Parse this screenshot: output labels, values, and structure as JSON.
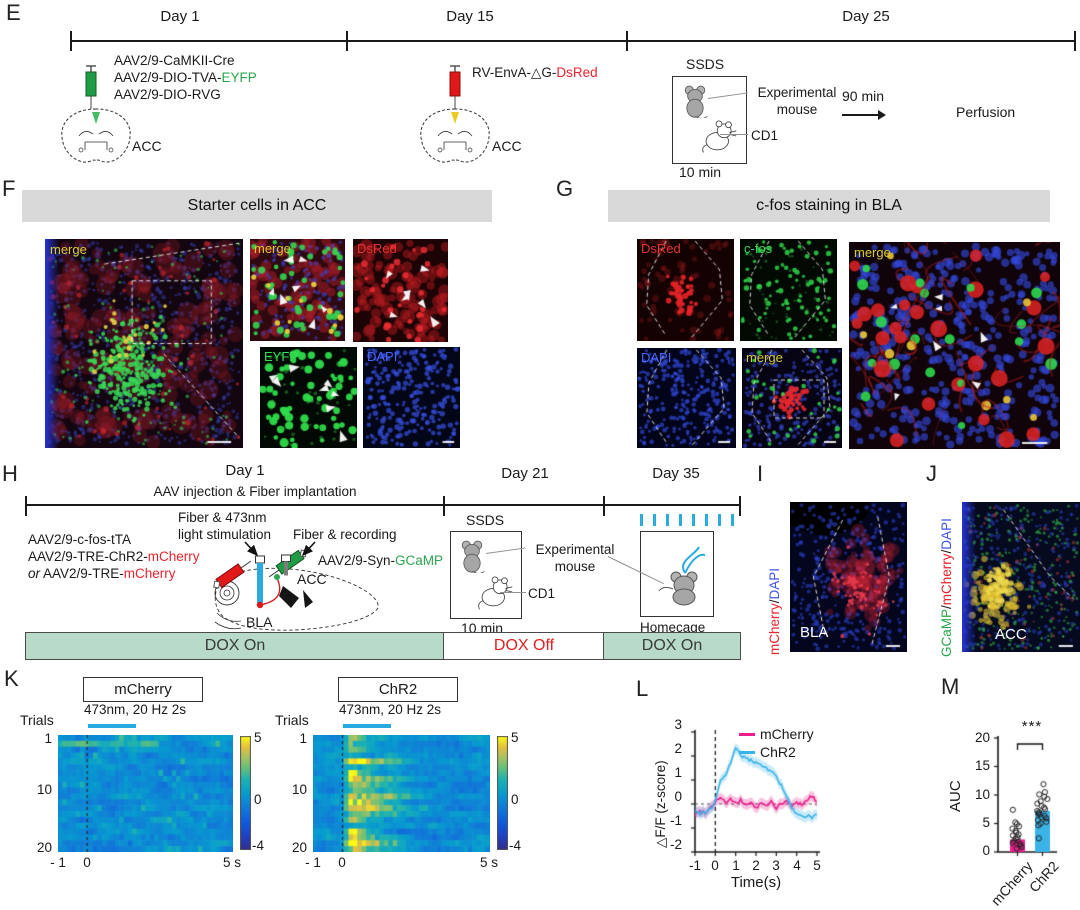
{
  "colors": {
    "magenta": "#ec1e8c",
    "cyan": "#3ab4e8",
    "blue_light": "#29abe2",
    "red_label": "#e8242c",
    "green_label": "#2ca64e",
    "header_bg": "#d9d9d9",
    "dox_green": "#b7dbc8"
  },
  "panel_e": {
    "letter": "E",
    "day1": {
      "label": "Day 1",
      "virus1": "AAV2/9-CaMKII-Cre",
      "virus2_pre": "AAV2/9-DIO-TVA-",
      "virus2_tag": "EYFP",
      "virus3": "AAV2/9-DIO-RVG",
      "region": "ACC"
    },
    "day15": {
      "label": "Day 15",
      "virus_pre": "RV-EnvA-△G-",
      "virus_tag": "DsRed",
      "region": "ACC"
    },
    "day25": {
      "label": "Day 25",
      "assay": "SSDS",
      "mouse1_line1": "Experimental",
      "mouse1_line2": "mouse",
      "mouse2": "CD1",
      "duration": "10 min",
      "wait": "90 min",
      "endpoint": "Perfusion"
    }
  },
  "panel_f": {
    "letter": "F",
    "title": "Starter cells in ACC",
    "labels": {
      "large": "merge",
      "merge": "merge",
      "dsred": "DsRed",
      "eyfp": "EYFP",
      "dapi": "DAPI"
    }
  },
  "panel_g": {
    "letter": "G",
    "title": "c-fos staining in BLA",
    "labels": {
      "dsred": "DsRed",
      "cfos": "c-fos",
      "dapi": "DAPI",
      "merge": "merge",
      "large": "merge"
    }
  },
  "panel_h": {
    "letter": "H",
    "day1_label": "Day 1",
    "day1_sub": "AAV injection & Fiber implantation",
    "day21_label": "Day 21",
    "day35_label": "Day 35",
    "virus1": "AAV2/9-c-fos-tTA",
    "virus2_pre": "AAV2/9-TRE-ChR2-",
    "virus2_tag": "mCherry",
    "virus3_or": "or",
    "virus3_pre": " AAV2/9-TRE-",
    "virus3_tag": "mCherry",
    "fiber1_line1": "Fiber & 473nm",
    "fiber1_line2": "light stimulation",
    "fiber2": "Fiber & recording",
    "gcamp_pre": "AAV2/9-Syn-",
    "gcamp_tag": "GCaMP",
    "acc": "ACC",
    "bla": "BLA",
    "ssds": {
      "label": "SSDS",
      "mouse1_line1": "Experimental",
      "mouse1_line2": "mouse",
      "mouse2": "CD1",
      "duration": "10 min"
    },
    "homecage": "Homecage",
    "dox_on1": "DOX On",
    "dox_off": "DOX Off",
    "dox_on2": "DOX On"
  },
  "panel_i": {
    "letter": "I",
    "tag1": "mCherry",
    "sep1": "/",
    "tag2": "DAPI",
    "region": "BLA"
  },
  "panel_j": {
    "letter": "J",
    "tag1": "GCaMP",
    "sep1": "/",
    "tag2": "mCherry",
    "sep2": "/",
    "tag3": "DAPI",
    "region": "ACC"
  },
  "panel_k": {
    "letter": "K"
  },
  "panel_l": {
    "letter": "L"
  },
  "panel_m": {
    "letter": "M"
  },
  "chart_data": [
    {
      "type": "heatmap",
      "panel": "K-left",
      "title": "mCherry",
      "stim_label": "473nm, 20 Hz 2s",
      "ylabel": "Trials",
      "trials": 20,
      "time_range_s": [
        -1,
        5
      ],
      "ytick_labels": [
        "1",
        "10",
        "20"
      ],
      "xtick_labels": [
        "- 1",
        "0",
        "5 s"
      ],
      "color_limits": [
        -4,
        5
      ],
      "colorbar_ticks": [
        "5",
        "0",
        "-4"
      ],
      "colormap": "parula",
      "stim_window_s": [
        0,
        2
      ],
      "response_amplitude_z": 0.3,
      "baseline_noise_z": 0.85
    },
    {
      "type": "heatmap",
      "panel": "K-right",
      "title": "ChR2",
      "stim_label": "473nm, 20 Hz 2s",
      "ylabel": "Trials",
      "trials": 20,
      "time_range_s": [
        -1,
        5
      ],
      "ytick_labels": [
        "1",
        "10",
        "20"
      ],
      "xtick_labels": [
        "- 1",
        "0",
        "5 s"
      ],
      "color_limits": [
        -4,
        5
      ],
      "colorbar_ticks": [
        "5",
        "0",
        "-4"
      ],
      "colormap": "parula",
      "stim_window_s": [
        0,
        2
      ],
      "response_amplitude_z": 3.6,
      "baseline_noise_z": 0.85
    },
    {
      "type": "line",
      "panel": "L",
      "xlabel": "Time(s)",
      "ylabel": "△F/F (z-score)",
      "xlim": [
        -1,
        5
      ],
      "ylim": [
        -2,
        3
      ],
      "xticks": [
        -1,
        0,
        1,
        2,
        3,
        4,
        5
      ],
      "yticks": [
        3,
        2,
        1,
        0,
        -1,
        -2
      ],
      "legend": [
        "mCherry",
        "ChR2"
      ],
      "vline_x": 0,
      "hline_y": 0,
      "band_halfwidth": 0.22,
      "series": [
        {
          "name": "mCherry",
          "color": "#ec1e8c",
          "x": [
            -1,
            -0.75,
            -0.5,
            -0.25,
            0,
            0.25,
            0.5,
            0.75,
            1,
            1.25,
            1.5,
            1.75,
            2,
            2.25,
            2.5,
            2.75,
            3,
            3.25,
            3.5,
            3.75,
            4,
            4.25,
            4.5,
            4.75,
            5
          ],
          "y": [
            -0.45,
            -0.3,
            -0.35,
            -0.15,
            0.1,
            0.3,
            0.05,
            0.2,
            0,
            0.15,
            -0.05,
            0.1,
            -0.2,
            0.05,
            -0.1,
            0.1,
            -0.15,
            0,
            0.1,
            -0.1,
            0.05,
            0,
            0.15,
            0.35,
            0.1
          ]
        },
        {
          "name": "ChR2",
          "color": "#3ab4e8",
          "x": [
            -1,
            -0.75,
            -0.5,
            -0.25,
            0,
            0.25,
            0.5,
            0.75,
            1,
            1.25,
            1.5,
            1.75,
            2,
            2.25,
            2.5,
            2.75,
            3,
            3.25,
            3.5,
            3.75,
            4,
            4.25,
            4.5,
            4.75,
            5
          ],
          "y": [
            -0.3,
            -0.4,
            -0.35,
            -0.25,
            0.15,
            0.95,
            1.25,
            1.7,
            2.3,
            2.05,
            1.9,
            1.8,
            1.75,
            1.65,
            1.5,
            1.35,
            1.15,
            0.75,
            0.3,
            -0.15,
            -0.45,
            -0.55,
            -0.5,
            -0.55,
            -0.45
          ]
        }
      ]
    },
    {
      "type": "bar",
      "panel": "M",
      "ylabel": "AUC",
      "ylim": [
        0,
        20
      ],
      "yticks": [
        0,
        5,
        10,
        15,
        20
      ],
      "categories": [
        "mCherry",
        "ChR2"
      ],
      "values": [
        2.2,
        7.2
      ],
      "bar_colors": [
        "#ec1e8c",
        "#3ab4e8"
      ],
      "points": [
        [
          0.6,
          0.9,
          1.1,
          1.4,
          1.6,
          1.9,
          2.1,
          2.4,
          2.6,
          2.9,
          3.1,
          3.4,
          3.7,
          4.1,
          4.5,
          4.9,
          5.2,
          7.4
        ],
        [
          2.4,
          4.7,
          5.0,
          5.3,
          5.6,
          5.9,
          6.1,
          6.3,
          6.6,
          6.8,
          7.0,
          7.2,
          7.5,
          7.8,
          8.1,
          8.5,
          8.9,
          9.3,
          9.7,
          10.1,
          10.5,
          11.9
        ]
      ],
      "significance": "***"
    }
  ]
}
